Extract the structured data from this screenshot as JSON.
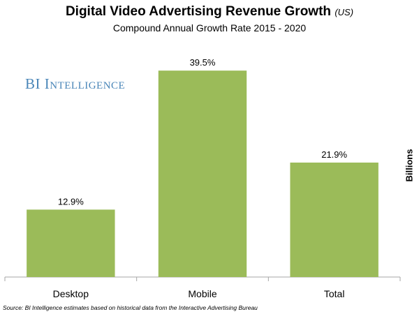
{
  "chart_data": {
    "type": "bar",
    "title": "Digital Video Advertising Revenue Growth",
    "title_note": "(US)",
    "subtitle": "Compound Annual Growth Rate 2015 - 2020",
    "categories": [
      "Desktop",
      "Mobile",
      "Total"
    ],
    "values": [
      12.9,
      39.5,
      21.9
    ],
    "data_labels": [
      "12.9%",
      "39.5%",
      "21.9%"
    ],
    "xlabel": "",
    "ylabel": "Billions",
    "ylim": [
      0,
      45
    ],
    "grid": false,
    "legend": "none",
    "bar_color": "#9bbb59"
  },
  "watermark": "BI Intelligence",
  "source": "Source: BI Intelligence estimates based on historical data from the Interactive Advertising Bureau"
}
